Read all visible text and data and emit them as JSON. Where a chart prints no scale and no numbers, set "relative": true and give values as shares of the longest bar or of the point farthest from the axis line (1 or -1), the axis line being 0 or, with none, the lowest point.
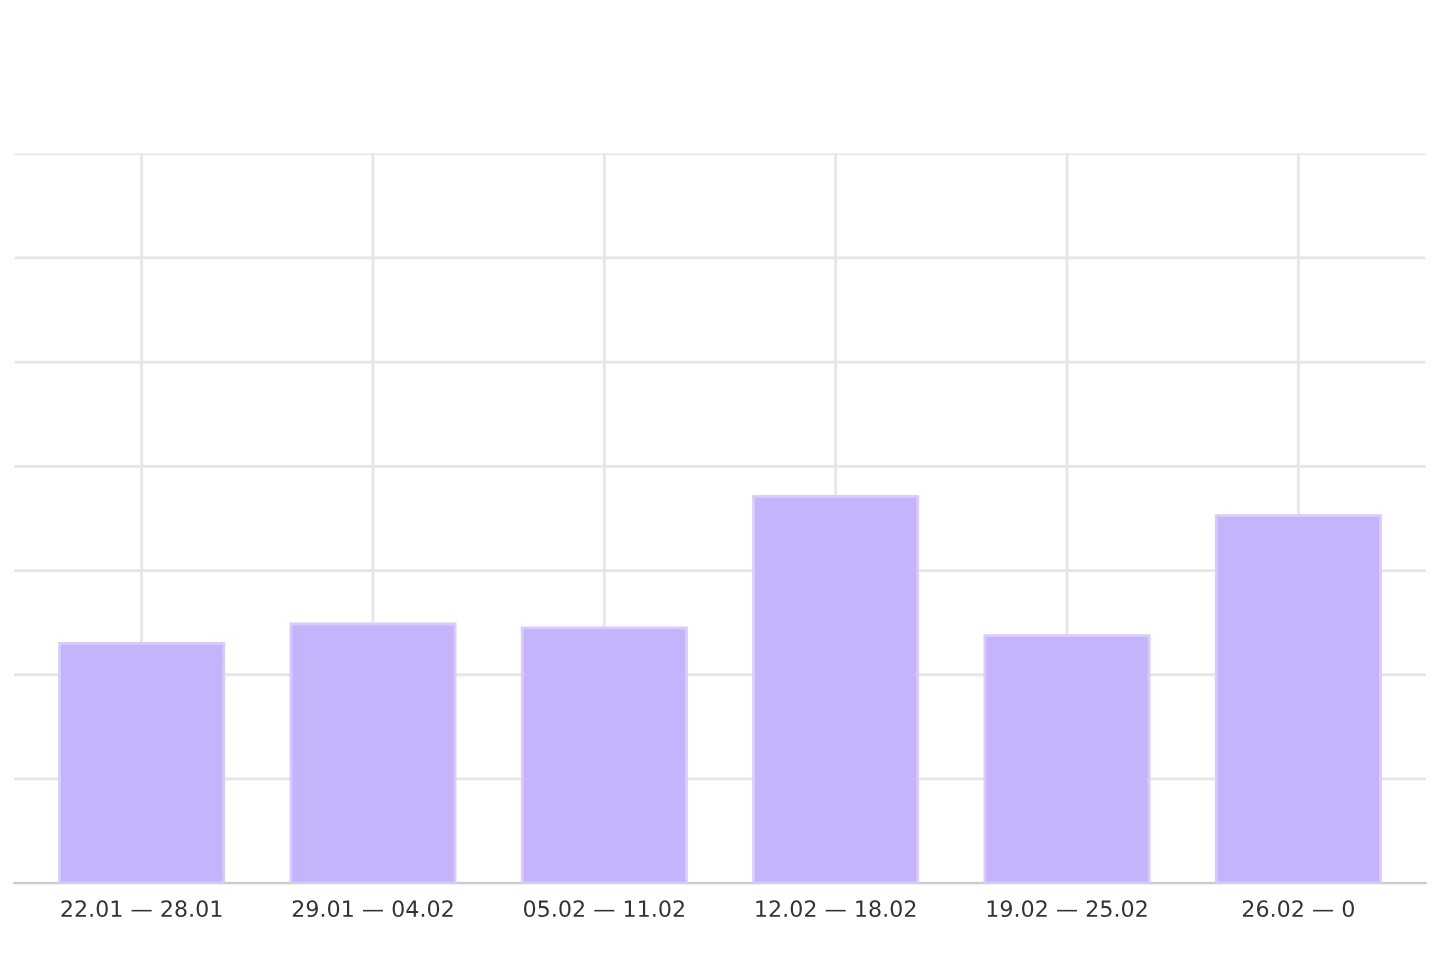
{
  "chart_data": {
    "type": "bar",
    "relative": true,
    "categories": [
      "22.01 — 28.01",
      "29.01 — 04.02",
      "05.02 — 11.02",
      "12.02 — 18.02",
      "19.02 — 25.02",
      "26.02 — 0"
    ],
    "values": [
      0.62,
      0.67,
      0.66,
      1,
      0.64,
      0.95
    ],
    "color": "#c5b3fb",
    "grid": true
  }
}
